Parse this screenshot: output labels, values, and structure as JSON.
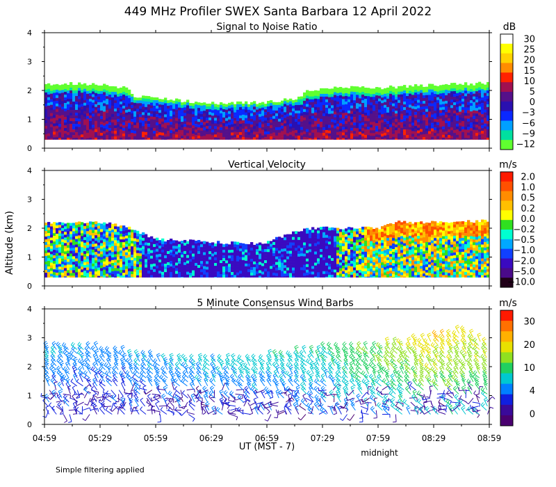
{
  "title": "449 MHz Profiler SWEX Santa Barbara 12 April 2022",
  "ylabel": "Altitude (km)",
  "xlabel": "UT  (MST - 7)",
  "xlabel_note": "midnight",
  "footer": "Simple filtering applied",
  "x_ticks": [
    "04:59",
    "05:29",
    "05:59",
    "06:29",
    "06:59",
    "07:29",
    "07:59",
    "08:29",
    "08:59"
  ],
  "chart_data": [
    {
      "type": "heatmap",
      "title": "Signal to Noise Ratio",
      "ylabel": "Altitude (km)",
      "ylim": [
        0,
        4
      ],
      "yticks": [
        "0",
        "1",
        "2",
        "3",
        "4"
      ],
      "xlim_hours": [
        4.983,
        8.983
      ],
      "colorbar_unit": "dB",
      "colorbar_labels": [
        "30",
        "25",
        "20",
        "15",
        "10",
        "5",
        "0",
        "−3",
        "−6",
        "−9",
        "−12"
      ],
      "colorbar_colors": [
        "#ffffff",
        "#ffff00",
        "#ffd200",
        "#ff8c00",
        "#ff2200",
        "#a01050",
        "#55108a",
        "#2a10b0",
        "#0a28ff",
        "#00a0ff",
        "#00e0a0",
        "#60ff30"
      ],
      "data_top_km": [
        [
          4.98,
          2.2
        ],
        [
          5.25,
          2.25
        ],
        [
          5.5,
          2.2
        ],
        [
          5.7,
          2.1
        ],
        [
          5.78,
          1.8
        ],
        [
          6.0,
          1.75
        ],
        [
          6.3,
          1.6
        ],
        [
          6.6,
          1.55
        ],
        [
          7.0,
          1.6
        ],
        [
          7.25,
          1.75
        ],
        [
          7.35,
          2.0
        ],
        [
          7.6,
          2.1
        ],
        [
          8.0,
          2.1
        ],
        [
          8.5,
          2.2
        ],
        [
          8.98,
          2.25
        ]
      ],
      "data_bottom_km": 0.3
    },
    {
      "type": "heatmap",
      "title": "Vertical Velocity",
      "ylabel": "Altitude (km)",
      "ylim": [
        0,
        4
      ],
      "yticks": [
        "0",
        "1",
        "2",
        "3",
        "4"
      ],
      "xlim_hours": [
        4.983,
        8.983
      ],
      "colorbar_unit": "m/s",
      "colorbar_labels": [
        "2.0",
        "1.0",
        "0.5",
        "0.2",
        "0.0",
        "−0.2",
        "−0.5",
        "−1.0",
        "−2.0",
        "−5.0",
        "−10.0"
      ],
      "colorbar_colors": [
        "#ff1a00",
        "#ff5000",
        "#ff8c00",
        "#ffc000",
        "#ffff00",
        "#30e020",
        "#00ffd0",
        "#00a8ff",
        "#1040ff",
        "#3a0ac0",
        "#4a0a8a",
        "#200018"
      ],
      "data_top_km": [
        [
          4.98,
          2.2
        ],
        [
          5.5,
          2.2
        ],
        [
          5.75,
          2.0
        ],
        [
          5.9,
          1.75
        ],
        [
          6.0,
          1.6
        ],
        [
          6.6,
          1.5
        ],
        [
          6.9,
          1.45
        ],
        [
          7.1,
          1.7
        ],
        [
          7.35,
          2.0
        ],
        [
          8.0,
          2.0
        ],
        [
          8.1,
          2.2
        ],
        [
          8.98,
          2.25
        ]
      ],
      "data_bottom_km": 0.3
    },
    {
      "type": "wind_barbs",
      "title": "5 Minute Consensus Wind Barbs",
      "ylabel": "Altitude (km)",
      "ylim": [
        0,
        4
      ],
      "yticks": [
        "0",
        "1",
        "2",
        "3",
        "4"
      ],
      "xlim_hours": [
        4.983,
        8.983
      ],
      "colorbar_unit": "m/s",
      "colorbar_labels": [
        "30",
        "20",
        "10",
        "4",
        "0"
      ],
      "colorbar_colors": [
        "#ff1a00",
        "#ff7000",
        "#ffb000",
        "#e8e000",
        "#90e020",
        "#20d060",
        "#00c8d0",
        "#0080ff",
        "#1020e0",
        "#3a0a9a",
        "#4a0070"
      ],
      "barb_top_km": [
        [
          4.98,
          2.7
        ],
        [
          5.5,
          2.6
        ],
        [
          6.0,
          2.3
        ],
        [
          6.5,
          2.3
        ],
        [
          7.0,
          2.3
        ],
        [
          7.5,
          2.6
        ],
        [
          8.0,
          2.7
        ],
        [
          8.5,
          3.0
        ],
        [
          8.75,
          3.2
        ],
        [
          8.98,
          2.8
        ]
      ],
      "speed_ms_by_time": [
        [
          4.98,
          9
        ],
        [
          5.5,
          8
        ],
        [
          6.0,
          9
        ],
        [
          6.5,
          10
        ],
        [
          7.0,
          10
        ],
        [
          7.5,
          12
        ],
        [
          8.0,
          15
        ],
        [
          8.5,
          19
        ],
        [
          8.98,
          17
        ]
      ]
    }
  ]
}
